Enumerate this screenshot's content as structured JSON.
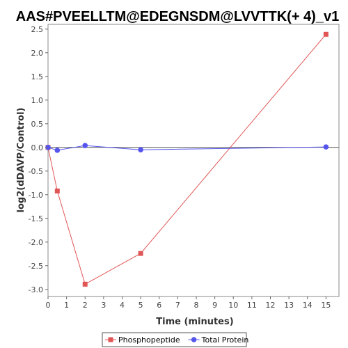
{
  "chart_data": {
    "type": "line",
    "title": "AAS#PVEELLTM@EDEGNSDM@LVVTTK(+ 4)_v1",
    "xlabel": "Time (minutes)",
    "ylabel": "log2(dDAVP/Control)",
    "xlim": [
      0,
      15.7
    ],
    "ylim": [
      -3.15,
      2.6
    ],
    "x_ticks": [
      0,
      1,
      2,
      3,
      4,
      5,
      6,
      7,
      8,
      9,
      10,
      11,
      12,
      13,
      14,
      15
    ],
    "y_ticks": [
      2.5,
      2.0,
      1.5,
      1.0,
      0.5,
      0.0,
      -0.5,
      -1.0,
      -1.5,
      -2.0,
      -2.5,
      -3.0
    ],
    "y_tick_labels": [
      "2.5",
      "2.0",
      "1.5",
      "1.0",
      "0.5",
      "0.0",
      "-0.5",
      "-1.0",
      "-1.5",
      "-2.0",
      "-2.5",
      "-3.0"
    ],
    "zero_line": true,
    "grid": false,
    "legend_position": "bottom",
    "series": [
      {
        "name": "Phosphopeptide",
        "color": "#e05555",
        "marker": "square",
        "x": [
          0,
          0.5,
          2,
          5,
          15
        ],
        "y": [
          0.0,
          -0.92,
          -2.89,
          -2.24,
          2.39
        ]
      },
      {
        "name": "Total Protein",
        "color": "#5555ee",
        "marker": "circle",
        "x": [
          0,
          0.5,
          2,
          5,
          15
        ],
        "y": [
          0.0,
          -0.06,
          0.04,
          -0.05,
          0.01
        ]
      }
    ]
  }
}
